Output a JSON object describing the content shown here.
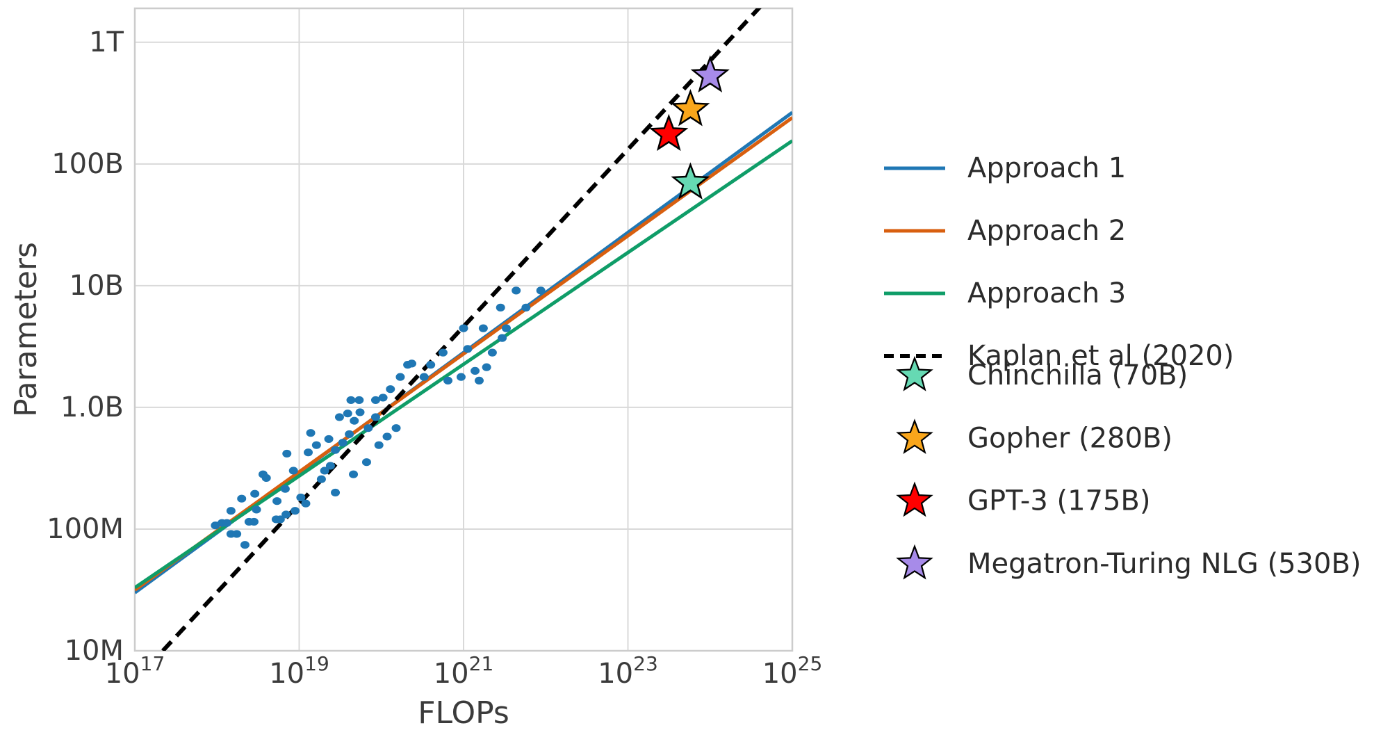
{
  "figure": {
    "background": "#ffffff"
  },
  "chart_data": {
    "type": "scatter",
    "title": "",
    "xlabel": "FLOPs",
    "ylabel": "Parameters",
    "x_scale": "log",
    "y_scale": "log",
    "xlim": [
      1e+17,
      1e+25
    ],
    "ylim": [
      10000000.0,
      1900000000000.0
    ],
    "grid": true,
    "grid_color": "#d9d9d9",
    "spine_color": "#cccccc",
    "x_ticks": [
      {
        "base": "10",
        "exp": "17"
      },
      {
        "base": "10",
        "exp": "19"
      },
      {
        "base": "10",
        "exp": "21"
      },
      {
        "base": "10",
        "exp": "23"
      },
      {
        "base": "10",
        "exp": "25"
      }
    ],
    "y_ticks": [
      {
        "value": 1000000000000.0,
        "label": "1T"
      },
      {
        "value": 100000000000.0,
        "label": "100B"
      },
      {
        "value": 10000000000.0,
        "label": "10B"
      },
      {
        "value": 1000000000.0,
        "label": "1.0B"
      },
      {
        "value": 100000000.0,
        "label": "100M"
      },
      {
        "value": 10000000.0,
        "label": "10M"
      }
    ],
    "series": [
      {
        "name": "Approach 1",
        "color": "#1f77b4",
        "style": "solid",
        "points": [
          [
            1e+17,
            30000000.0
          ],
          [
            1e+25,
            265000000000.0
          ]
        ]
      },
      {
        "name": "Approach 2",
        "color": "#d85f0f",
        "style": "solid",
        "points": [
          [
            1e+17,
            31600000.0
          ],
          [
            1e+25,
            240000000000.0
          ]
        ]
      },
      {
        "name": "Approach 3",
        "color": "#0f9d68",
        "style": "solid",
        "points": [
          [
            1e+17,
            33000000.0
          ],
          [
            1e+25,
            155000000000.0
          ]
        ]
      },
      {
        "name": "Kaplan et al (2020)",
        "color": "#000000",
        "style": "dashed",
        "points": [
          [
            2.19e+17,
            10000000.0
          ],
          [
            1e+25,
            3770000000000.0
          ]
        ]
      }
    ],
    "scatter": {
      "name": "training-runs",
      "color": "#1f77b4",
      "log_points": [
        [
          17.98,
          8.03
        ],
        [
          18.06,
          8.05
        ],
        [
          18.12,
          8.05
        ],
        [
          18.17,
          7.96
        ],
        [
          18.24,
          7.96
        ],
        [
          18.34,
          7.87
        ],
        [
          18.17,
          8.15
        ],
        [
          18.3,
          8.25
        ],
        [
          18.46,
          8.29
        ],
        [
          18.56,
          8.45
        ],
        [
          18.6,
          8.42
        ],
        [
          18.39,
          8.06
        ],
        [
          18.45,
          8.06
        ],
        [
          18.48,
          8.16
        ],
        [
          18.72,
          8.08
        ],
        [
          18.77,
          8.08
        ],
        [
          18.73,
          8.23
        ],
        [
          18.83,
          8.33
        ],
        [
          18.93,
          8.48
        ],
        [
          18.85,
          8.62
        ],
        [
          18.84,
          8.12
        ],
        [
          18.95,
          8.15
        ],
        [
          19.08,
          8.21
        ],
        [
          19.02,
          8.26
        ],
        [
          19.11,
          8.63
        ],
        [
          19.14,
          8.79
        ],
        [
          19.21,
          8.69
        ],
        [
          19.27,
          8.41
        ],
        [
          19.31,
          8.48
        ],
        [
          19.36,
          8.74
        ],
        [
          19.38,
          8.52
        ],
        [
          19.44,
          8.65
        ],
        [
          19.44,
          8.3
        ],
        [
          19.53,
          8.71
        ],
        [
          19.61,
          8.78
        ],
        [
          19.49,
          8.92
        ],
        [
          19.59,
          8.95
        ],
        [
          19.66,
          8.45
        ],
        [
          19.67,
          8.89
        ],
        [
          19.73,
          9.06
        ],
        [
          19.74,
          8.96
        ],
        [
          19.63,
          9.06
        ],
        [
          19.82,
          8.55
        ],
        [
          19.84,
          8.83
        ],
        [
          19.93,
          8.92
        ],
        [
          19.93,
          9.06
        ],
        [
          19.97,
          8.69
        ],
        [
          20.02,
          9.08
        ],
        [
          20.07,
          8.76
        ],
        [
          20.11,
          9.15
        ],
        [
          20.18,
          8.83
        ],
        [
          20.23,
          9.25
        ],
        [
          20.32,
          9.35
        ],
        [
          20.37,
          9.36
        ],
        [
          20.52,
          9.25
        ],
        [
          20.6,
          9.35
        ],
        [
          20.75,
          9.45
        ],
        [
          20.81,
          9.22
        ],
        [
          20.97,
          9.25
        ],
        [
          21.0,
          9.65
        ],
        [
          21.05,
          9.48
        ],
        [
          21.14,
          9.3
        ],
        [
          21.19,
          9.22
        ],
        [
          21.28,
          9.33
        ],
        [
          21.35,
          9.45
        ],
        [
          21.24,
          9.65
        ],
        [
          21.47,
          9.57
        ],
        [
          21.52,
          9.65
        ],
        [
          21.45,
          9.82
        ],
        [
          21.64,
          9.96
        ],
        [
          21.76,
          9.82
        ],
        [
          21.94,
          9.96
        ]
      ]
    },
    "stars": [
      {
        "name": "Chinchilla (70B)",
        "color": "#66d9b3",
        "flops": 5.76e+23,
        "params": 70000000000.0
      },
      {
        "name": "Gopher (280B)",
        "color": "#f9a61b",
        "flops": 5.76e+23,
        "params": 280000000000.0
      },
      {
        "name": "GPT-3 (175B)",
        "color": "#ff0000",
        "flops": 3.14e+23,
        "params": 175000000000.0
      },
      {
        "name": "Megatron-Turing NLG (530B)",
        "color": "#a78be9",
        "flops": 1e+24,
        "params": 530000000000.0
      }
    ],
    "legend": {
      "position": "right-outside",
      "text_color": "#2b2b2b"
    }
  }
}
